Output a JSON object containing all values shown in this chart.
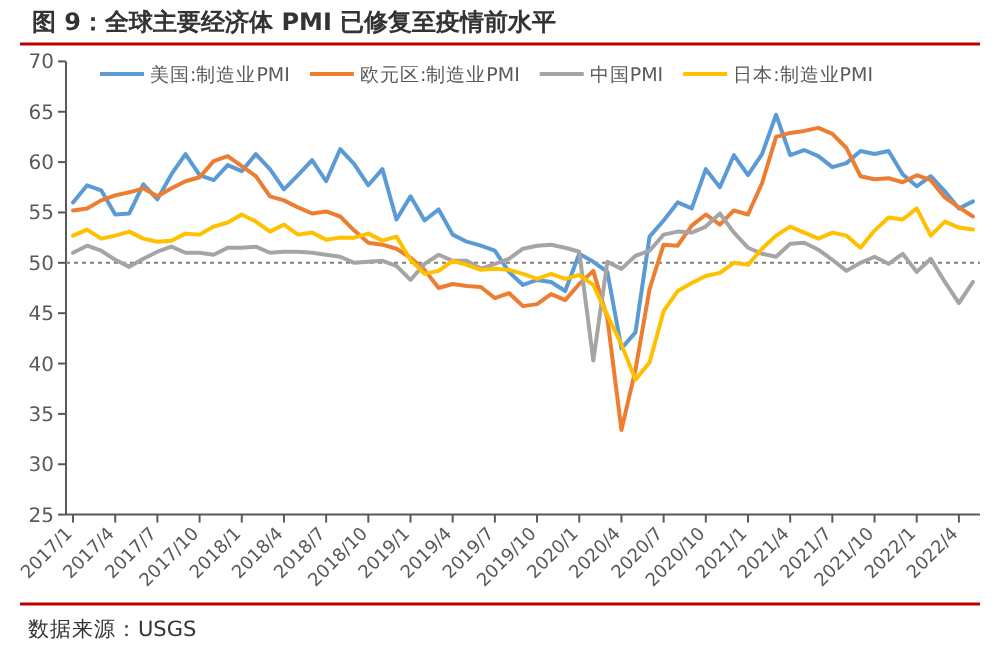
{
  "chart_data": {
    "type": "line",
    "title": "图 9：全球主要经济体 PMI 已修复至疫情前水平",
    "categories": [
      "2017/1",
      null,
      null,
      "2017/4",
      null,
      null,
      "2017/7",
      null,
      null,
      "2017/10",
      null,
      null,
      "2018/1",
      null,
      null,
      "2018/4",
      null,
      null,
      "2018/7",
      null,
      null,
      "2018/10",
      null,
      null,
      "2019/1",
      null,
      null,
      "2019/4",
      null,
      null,
      "2019/7",
      null,
      null,
      "2019/10",
      null,
      null,
      "2020/1",
      null,
      null,
      "2020/4",
      null,
      null,
      "2020/7",
      null,
      null,
      "2020/10",
      null,
      null,
      "2021/1",
      null,
      null,
      "2021/4",
      null,
      null,
      "2021/7",
      null,
      null,
      "2021/10",
      null,
      null,
      "2022/1",
      null,
      null,
      "2022/4",
      null
    ],
    "series": [
      {
        "name": "美国:制造业PMI",
        "color": "#5b9bd5",
        "values": [
          56.0,
          57.7,
          57.2,
          54.8,
          54.9,
          57.8,
          56.3,
          58.8,
          60.8,
          58.7,
          58.2,
          59.7,
          59.1,
          60.8,
          59.3,
          57.3,
          58.7,
          60.2,
          58.1,
          61.3,
          59.8,
          57.7,
          59.3,
          54.3,
          56.6,
          54.2,
          55.3,
          52.8,
          52.1,
          51.7,
          51.2,
          49.1,
          47.8,
          48.3,
          48.1,
          47.2,
          50.9,
          50.1,
          49.1,
          41.5,
          43.1,
          52.6,
          54.2,
          56.0,
          55.4,
          59.3,
          57.5,
          60.7,
          58.7,
          60.8,
          64.7,
          60.7,
          61.2,
          60.6,
          59.5,
          59.9,
          61.1,
          60.8,
          61.1,
          58.8,
          57.6,
          58.6,
          57.1,
          55.4,
          56.1
        ]
      },
      {
        "name": "欧元区:制造业PMI",
        "color": "#ed7d31",
        "values": [
          55.2,
          55.4,
          56.2,
          56.7,
          57.0,
          57.4,
          56.6,
          57.4,
          58.1,
          58.5,
          60.1,
          60.6,
          59.6,
          58.6,
          56.6,
          56.2,
          55.5,
          54.9,
          55.1,
          54.6,
          53.2,
          52.0,
          51.8,
          51.4,
          50.5,
          49.3,
          47.5,
          47.9,
          47.7,
          47.6,
          46.5,
          47.0,
          45.7,
          45.9,
          46.9,
          46.3,
          47.9,
          49.2,
          44.5,
          33.4,
          39.4,
          47.4,
          51.8,
          51.7,
          53.7,
          54.8,
          53.8,
          55.2,
          54.8,
          57.9,
          62.5,
          62.9,
          63.1,
          63.4,
          62.8,
          61.4,
          58.6,
          58.3,
          58.4,
          58.0,
          58.7,
          58.2,
          56.5,
          55.5,
          54.6
        ]
      },
      {
        "name": "中国PMI",
        "color": "#a5a5a5",
        "values": [
          51.0,
          51.7,
          51.2,
          50.3,
          49.6,
          50.4,
          51.1,
          51.6,
          51.0,
          51.0,
          50.8,
          51.5,
          51.5,
          51.6,
          51.0,
          51.1,
          51.1,
          51.0,
          50.8,
          50.6,
          50.0,
          50.1,
          50.2,
          49.7,
          48.3,
          49.9,
          50.8,
          50.2,
          50.2,
          49.4,
          49.9,
          50.4,
          51.4,
          51.7,
          51.8,
          51.5,
          51.1,
          40.3,
          50.1,
          49.4,
          50.7,
          51.2,
          52.8,
          53.1,
          53.0,
          53.6,
          54.9,
          53.0,
          51.5,
          50.9,
          50.6,
          51.9,
          52.0,
          51.3,
          50.3,
          49.2,
          50.0,
          50.6,
          49.9,
          50.9,
          49.1,
          50.4,
          48.1,
          46.0,
          48.1
        ]
      },
      {
        "name": "日本:制造业PMI",
        "color": "#ffc000",
        "values": [
          52.7,
          53.3,
          52.4,
          52.7,
          53.1,
          52.4,
          52.1,
          52.2,
          52.9,
          52.8,
          53.6,
          54.0,
          54.8,
          54.1,
          53.1,
          53.8,
          52.8,
          53.0,
          52.3,
          52.5,
          52.5,
          52.9,
          52.2,
          52.6,
          50.3,
          48.9,
          49.2,
          50.2,
          49.8,
          49.3,
          49.4,
          49.3,
          48.9,
          48.4,
          48.9,
          48.4,
          48.8,
          47.8,
          44.8,
          41.9,
          38.4,
          40.1,
          45.2,
          47.2,
          48.0,
          48.7,
          49.0,
          50.0,
          49.8,
          51.4,
          52.7,
          53.6,
          53.0,
          52.4,
          53.0,
          52.7,
          51.5,
          53.2,
          54.5,
          54.3,
          55.4,
          52.7,
          54.1,
          53.5,
          53.3
        ]
      }
    ],
    "ylim": [
      25,
      70
    ],
    "yticks": [
      25,
      30,
      35,
      40,
      45,
      50,
      55,
      60,
      65,
      70
    ],
    "ref_lines": [
      {
        "axis": "y",
        "value": 50,
        "color": "#7f7f7f",
        "line_style": "dotted"
      }
    ],
    "legend": "top",
    "annotations": [
      "数据来源：USGS"
    ]
  }
}
